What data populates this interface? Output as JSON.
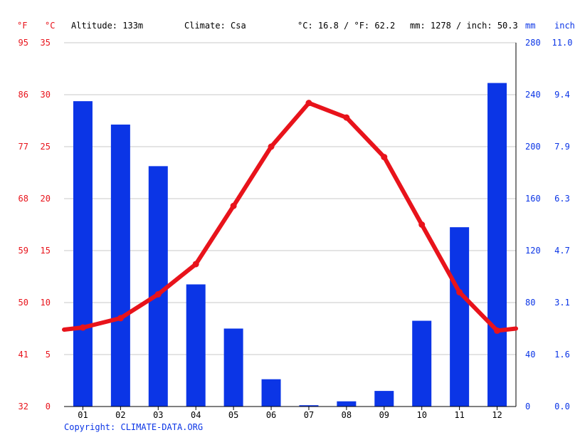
{
  "header": {
    "unit_f": "°F",
    "unit_c": "°C",
    "altitude": "Altitude: 133m",
    "climate": "Climate: Csa",
    "temp_avg": "°C: 16.8 / °F: 62.2",
    "precip_total": "mm: 1278 / inch: 50.3",
    "unit_mm": "mm",
    "unit_inch": "inch"
  },
  "footer": {
    "copyright": "Copyright: CLIMATE-DATA.ORG"
  },
  "colors": {
    "temperature": "#e8131b",
    "precipitation": "#0b35e6",
    "grid": "#c8c8c8"
  },
  "chart_data": {
    "type": "bar+line",
    "categories": [
      "01",
      "02",
      "03",
      "04",
      "05",
      "06",
      "07",
      "08",
      "09",
      "10",
      "11",
      "12"
    ],
    "series": [
      {
        "values": [
          235,
          217,
          185,
          94,
          60,
          21,
          1,
          4,
          12,
          66,
          138,
          249
        ],
        "unit": "mm",
        "type": "bar",
        "axis": "right"
      },
      {
        "values": [
          7.6,
          8.5,
          10.8,
          13.7,
          19.3,
          25.0,
          29.2,
          27.8,
          24.0,
          17.5,
          11.0,
          7.3
        ],
        "unit": "°C",
        "type": "line",
        "axis": "left"
      }
    ],
    "temp_line_edges": [
      7.4,
      7.5
    ],
    "y_left_c": {
      "ticks": [
        "0",
        "5",
        "10",
        "15",
        "20",
        "25",
        "30",
        "35"
      ],
      "range": [
        0,
        35
      ]
    },
    "y_left_f": {
      "ticks": [
        "32",
        "41",
        "50",
        "59",
        "68",
        "77",
        "86",
        "95"
      ]
    },
    "y_right_mm": {
      "ticks": [
        "0",
        "40",
        "80",
        "120",
        "160",
        "200",
        "240",
        "280"
      ],
      "range": [
        0,
        280
      ]
    },
    "y_right_inch": {
      "ticks": [
        "0.0",
        "1.6",
        "3.1",
        "4.7",
        "6.3",
        "7.9",
        "9.4",
        "11.0"
      ]
    },
    "grid": true
  }
}
